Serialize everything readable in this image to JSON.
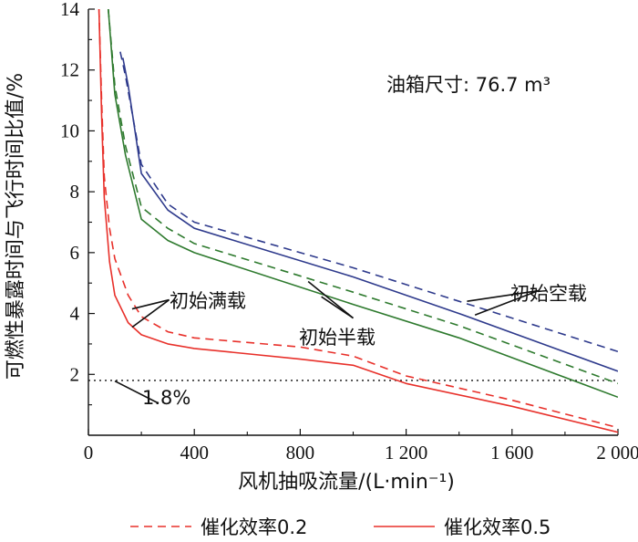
{
  "chart_data": {
    "type": "line",
    "xlabel": "风机抽吸流量/(L·min⁻¹)",
    "ylabel": "可燃性暴露时间与飞行时间比值/%",
    "xlim": [
      0,
      2000
    ],
    "ylim": [
      0,
      14
    ],
    "x_ticks": [
      0,
      400,
      800,
      1200,
      1600,
      2000
    ],
    "x_tick_labels": [
      "0",
      "400",
      "800",
      "1 200",
      "1 600",
      "2 000"
    ],
    "y_ticks": [
      2,
      4,
      6,
      8,
      10,
      12,
      14
    ],
    "y_tick_labels": [
      "2",
      "4",
      "6",
      "8",
      "10",
      "12",
      "14"
    ],
    "grid": false,
    "legend_position": "bottom",
    "colors": {
      "full_load": "#e8302a",
      "half_load": "#2e7a2e",
      "empty_load": "#2e3a8c",
      "axis": "#111111",
      "reference": "#111111"
    },
    "annotations": {
      "tank_size": "油箱尺寸: 76.7 m³",
      "empty_load": "初始空载",
      "half_load": "初始半载",
      "full_load": "初始满载",
      "threshold": "1.8%"
    },
    "reference_line": {
      "y": 1.8,
      "style": "dotted"
    },
    "legend": [
      {
        "label": "催化效率0.2",
        "style": "dashed"
      },
      {
        "label": "催化效率0.5",
        "style": "solid"
      }
    ],
    "series": [
      {
        "group": "empty_load",
        "style": "dashed",
        "efficiency": 0.2,
        "x": [
          120,
          140,
          200,
          300,
          400,
          1000,
          1400,
          2000
        ],
        "y": [
          12.6,
          11.8,
          8.9,
          7.6,
          7.0,
          5.5,
          4.4,
          2.75
        ]
      },
      {
        "group": "empty_load",
        "style": "solid",
        "efficiency": 0.5,
        "x": [
          130,
          150,
          200,
          300,
          400,
          1000,
          1400,
          2000
        ],
        "y": [
          12.4,
          11.5,
          8.6,
          7.4,
          6.8,
          5.2,
          4.0,
          2.1
        ]
      },
      {
        "group": "half_load",
        "style": "dashed",
        "efficiency": 0.2,
        "x": [
          75,
          100,
          140,
          200,
          300,
          400,
          1000,
          1400,
          2000
        ],
        "y": [
          14.0,
          11.5,
          9.5,
          7.5,
          6.8,
          6.3,
          4.7,
          3.6,
          1.7
        ]
      },
      {
        "group": "half_load",
        "style": "solid",
        "efficiency": 0.5,
        "x": [
          75,
          100,
          140,
          200,
          300,
          400,
          1000,
          1400,
          2000
        ],
        "y": [
          14.0,
          11.2,
          9.2,
          7.1,
          6.4,
          6.0,
          4.3,
          3.2,
          1.25
        ]
      },
      {
        "group": "full_load",
        "style": "dashed",
        "efficiency": 0.2,
        "x": [
          40,
          50,
          60,
          80,
          100,
          150,
          200,
          300,
          400,
          800,
          1000,
          1200,
          1600,
          2000
        ],
        "y": [
          14.0,
          11.0,
          8.5,
          6.8,
          5.8,
          4.6,
          3.9,
          3.4,
          3.2,
          2.9,
          2.6,
          1.95,
          1.15,
          0.25
        ]
      },
      {
        "group": "full_load",
        "style": "solid",
        "efficiency": 0.5,
        "x": [
          40,
          50,
          60,
          80,
          100,
          150,
          200,
          300,
          400,
          800,
          1000,
          1200,
          1600,
          2000
        ],
        "y": [
          14.0,
          10.5,
          7.8,
          5.7,
          4.6,
          3.7,
          3.3,
          3.0,
          2.85,
          2.5,
          2.3,
          1.7,
          0.95,
          0.1
        ]
      }
    ]
  }
}
